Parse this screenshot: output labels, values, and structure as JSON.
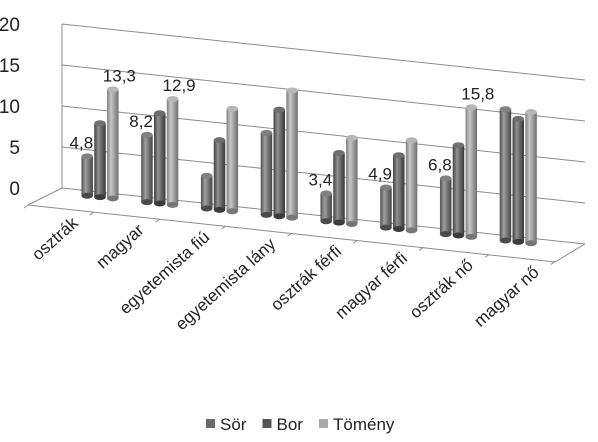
{
  "chart_data": {
    "type": "bar",
    "title": "",
    "xlabel": "",
    "ylabel": "",
    "ylim": [
      0,
      20
    ],
    "yticks": [
      0,
      5,
      10,
      15,
      20
    ],
    "grid": true,
    "legend_position": "bottom",
    "categories": [
      "osztrák",
      "magyar",
      "egyetemista fiú",
      "egyetemista lány",
      "osztrák férfi",
      "magyar férfi",
      "osztrák nő",
      "magyar nő"
    ],
    "series": [
      {
        "name": "Sör",
        "values": [
          4.8,
          8.2,
          4.0,
          10.0,
          3.4,
          4.9,
          6.8,
          16.0
        ],
        "color": "#6a6a6a"
      },
      {
        "name": "Bor",
        "values": [
          9.0,
          11.0,
          8.5,
          13.0,
          8.5,
          9.0,
          11.0,
          15.0
        ],
        "color": "#555555"
      },
      {
        "name": "Tömény",
        "values": [
          13.3,
          12.9,
          12.5,
          15.5,
          10.5,
          11.0,
          15.8,
          16.0
        ],
        "color": "#a9a9a9"
      }
    ],
    "data_labels": [
      {
        "category": 0,
        "series": 0,
        "text": "4,8"
      },
      {
        "category": 0,
        "series": 2,
        "text": "13,3"
      },
      {
        "category": 1,
        "series": 0,
        "text": "8,2"
      },
      {
        "category": 1,
        "series": 2,
        "text": "12,9"
      },
      {
        "category": 4,
        "series": 0,
        "text": "3,4"
      },
      {
        "category": 5,
        "series": 0,
        "text": "4,9"
      },
      {
        "category": 6,
        "series": 0,
        "text": "6,8"
      },
      {
        "category": 6,
        "series": 2,
        "text": "15,8"
      }
    ]
  }
}
